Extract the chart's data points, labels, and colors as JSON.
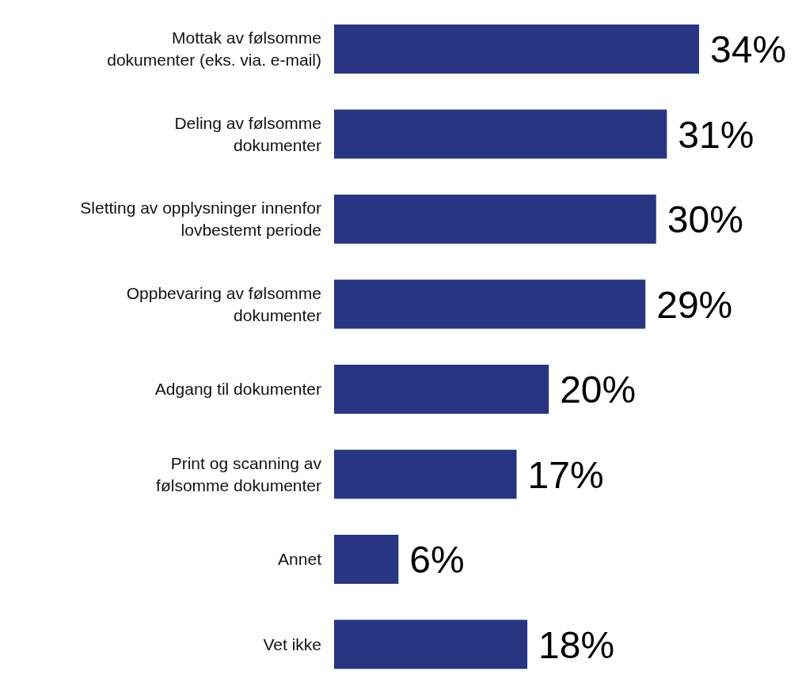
{
  "chart_data": {
    "type": "bar",
    "orientation": "horizontal",
    "categories": [
      "Mottak av følsomme\ndokumenter (eks. via. e-mail)",
      "Deling av følsomme\ndokumenter",
      "Sletting av opplysninger innenfor\nlovbestemt periode",
      "Oppbevaring av følsomme\ndokumenter",
      "Adgang til dokumenter",
      "Print og scanning av\nfølsomme dokumenter",
      "Annet",
      "Vet ikke"
    ],
    "values": [
      34,
      31,
      30,
      29,
      20,
      17,
      6,
      18
    ],
    "value_labels": [
      "34%",
      "31%",
      "30%",
      "29%",
      "20%",
      "17%",
      "6%",
      "18%"
    ],
    "color": "#283583"
  }
}
